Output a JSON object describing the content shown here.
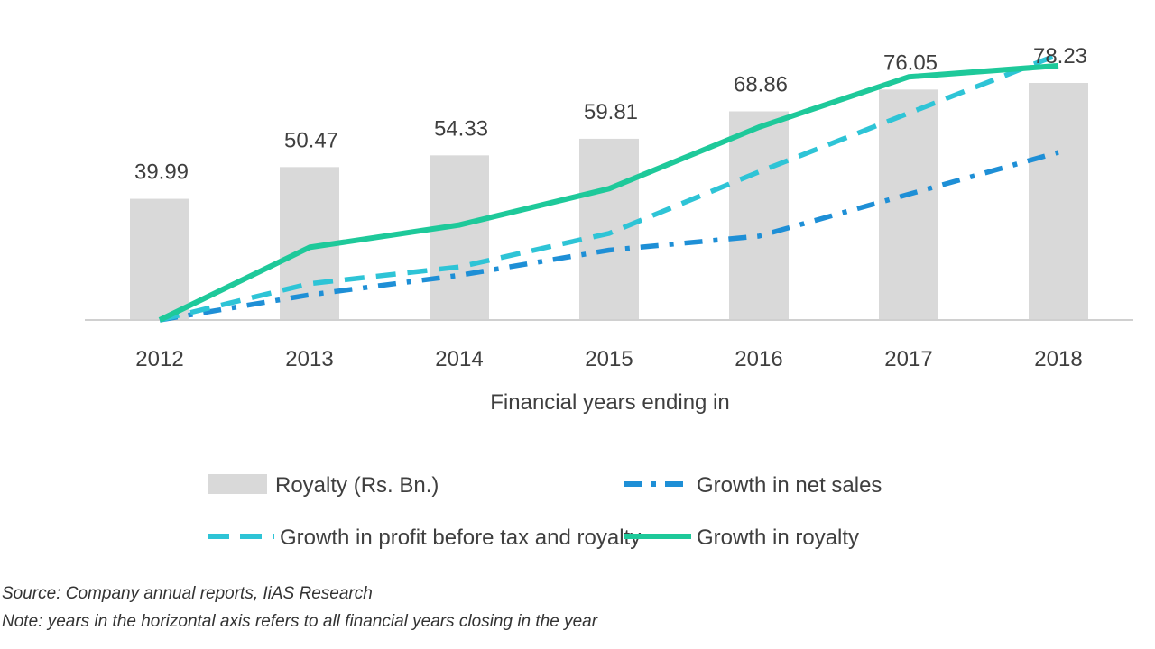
{
  "chart_data": {
    "type": "bar",
    "categories": [
      "2012",
      "2013",
      "2014",
      "2015",
      "2016",
      "2017",
      "2018"
    ],
    "xlabel": "Financial years ending in",
    "series": [
      {
        "name": "Royalty (Rs. Bn.)",
        "type": "bar",
        "values": [
          39.99,
          50.47,
          54.33,
          59.81,
          68.86,
          76.05,
          78.23
        ],
        "color": "#d9d9d9"
      },
      {
        "name": "Growth in net sales",
        "type": "line",
        "style": "dash-dot",
        "values": [
          0,
          0.09,
          0.16,
          0.25,
          0.3,
          0.45,
          0.6
        ],
        "color": "#1e8fd6"
      },
      {
        "name": "Growth in profit before tax and royalty",
        "type": "line",
        "style": "dashed",
        "values": [
          0,
          0.13,
          0.19,
          0.31,
          0.53,
          0.74,
          0.95
        ],
        "color": "#2ec4d6"
      },
      {
        "name": "Growth in royalty",
        "type": "line",
        "style": "solid",
        "values": [
          0,
          0.26,
          0.34,
          0.47,
          0.69,
          0.87,
          0.91
        ],
        "color": "#1ec99a"
      }
    ],
    "legend_position": "bottom",
    "grid": false
  },
  "notes": {
    "source": "Source: Company annual reports, IiAS Research",
    "note": "Note: years in the horizontal axis refers to all financial years closing in the year"
  }
}
